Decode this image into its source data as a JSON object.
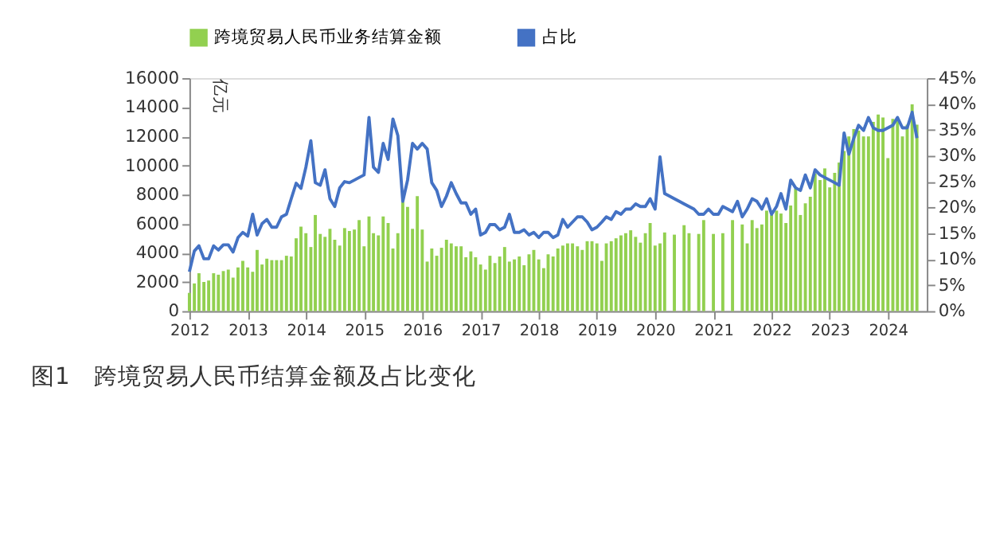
{
  "chart_data": {
    "type": "bar",
    "title": "图1　跨境贸易人民币结算金额及占比变化",
    "ylabel": "亿元",
    "x": [
      "2012-01",
      "2012-02",
      "2012-03",
      "2012-04",
      "2012-05",
      "2012-06",
      "2012-07",
      "2012-08",
      "2012-09",
      "2012-10",
      "2012-11",
      "2012-12",
      "2013-01",
      "2013-02",
      "2013-03",
      "2013-04",
      "2013-05",
      "2013-06",
      "2013-07",
      "2013-08",
      "2013-09",
      "2013-10",
      "2013-11",
      "2013-12",
      "2014-01",
      "2014-02",
      "2014-03",
      "2014-04",
      "2014-05",
      "2014-06",
      "2014-07",
      "2014-08",
      "2014-09",
      "2014-10",
      "2014-11",
      "2014-12",
      "2015-01",
      "2015-02",
      "2015-03",
      "2015-04",
      "2015-05",
      "2015-06",
      "2015-07",
      "2015-08",
      "2015-09",
      "2015-10",
      "2015-11",
      "2015-12",
      "2016-01",
      "2016-02",
      "2016-03",
      "2016-04",
      "2016-05",
      "2016-06",
      "2016-07",
      "2016-08",
      "2016-09",
      "2016-10",
      "2016-11",
      "2016-12",
      "2017-01",
      "2017-02",
      "2017-03",
      "2017-04",
      "2017-05",
      "2017-06",
      "2017-07",
      "2017-08",
      "2017-09",
      "2017-10",
      "2017-11",
      "2017-12",
      "2018-01",
      "2018-02",
      "2018-03",
      "2018-04",
      "2018-05",
      "2018-06",
      "2018-07",
      "2018-08",
      "2018-09",
      "2018-10",
      "2018-11",
      "2018-12",
      "2019-01",
      "2019-02",
      "2019-03",
      "2019-04",
      "2019-05",
      "2019-06",
      "2019-07",
      "2019-08",
      "2019-09",
      "2019-10",
      "2019-11",
      "2019-12",
      "2020-01",
      "2020-02",
      "2020-03",
      "2020-04",
      "2020-05",
      "2020-06",
      "2020-07",
      "2020-08",
      "2020-09",
      "2020-10",
      "2020-11",
      "2020-12",
      "2021-01",
      "2021-02",
      "2021-03",
      "2021-04",
      "2021-05",
      "2021-06",
      "2021-07",
      "2021-08",
      "2021-09",
      "2021-10",
      "2021-11",
      "2021-12",
      "2022-01",
      "2022-02",
      "2022-03",
      "2022-04",
      "2022-05",
      "2022-06",
      "2022-07",
      "2022-08",
      "2022-09",
      "2022-10",
      "2022-11",
      "2022-12",
      "2023-01",
      "2023-02",
      "2023-03",
      "2023-04",
      "2023-05",
      "2023-06",
      "2023-07",
      "2023-08",
      "2023-09",
      "2023-10",
      "2023-11",
      "2023-12",
      "2024-01",
      "2024-02",
      "2024-03",
      "2024-04",
      "2024-05",
      "2024-06",
      "2024-07"
    ],
    "xlim": [
      "2012-01",
      "2024-09"
    ],
    "xticks": [
      {
        "value": "2012-01",
        "label": "2012"
      },
      {
        "value": "2013-01",
        "label": "2013"
      },
      {
        "value": "2014-01",
        "label": "2014"
      },
      {
        "value": "2015-01",
        "label": "2015"
      },
      {
        "value": "2016-01",
        "label": "2016"
      },
      {
        "value": "2017-01",
        "label": "2017"
      },
      {
        "value": "2018-01",
        "label": "2018"
      },
      {
        "value": "2019-01",
        "label": "2019"
      },
      {
        "value": "2020-01",
        "label": "2020"
      },
      {
        "value": "2021-01",
        "label": "2021"
      },
      {
        "value": "2022-01",
        "label": "2022"
      },
      {
        "value": "2023-01",
        "label": "2023"
      },
      {
        "value": "2024-01",
        "label": "2024"
      }
    ],
    "ylim": [
      0,
      16000
    ],
    "yticks": [
      0,
      2000,
      4000,
      6000,
      8000,
      10000,
      12000,
      14000,
      16000
    ],
    "y2lim": [
      0,
      45
    ],
    "y2ticks": [
      {
        "value": 0,
        "label": "0%"
      },
      {
        "value": 5,
        "label": "5%"
      },
      {
        "value": 10,
        "label": "10%"
      },
      {
        "value": 15,
        "label": "15%"
      },
      {
        "value": 20,
        "label": "20%"
      },
      {
        "value": 25,
        "label": "25%"
      },
      {
        "value": 30,
        "label": "30%"
      },
      {
        "value": 35,
        "label": "35%"
      },
      {
        "value": 40,
        "label": "40%"
      },
      {
        "value": 45,
        "label": "45%"
      }
    ],
    "legend": "top",
    "grid": false,
    "series": [
      {
        "name": "跨境贸易人民币业务结算金额",
        "color": "#92d050",
        "values": [
          1250,
          1900,
          2600,
          2000,
          2100,
          2600,
          2500,
          2750,
          2850,
          2300,
          3000,
          3450,
          3000,
          2700,
          4200,
          3200,
          3600,
          3500,
          3500,
          3500,
          3800,
          3750,
          5000,
          5800,
          5350,
          4400,
          6600,
          5300,
          5100,
          5650,
          4900,
          4500,
          5700,
          5500,
          5600,
          6250,
          4450,
          6500,
          5350,
          5200,
          6500,
          6050,
          4300,
          5350,
          7500,
          7150,
          5650,
          7900,
          5600,
          3400,
          4300,
          3800,
          4350,
          4900,
          4650,
          4450,
          4450,
          3700,
          4100,
          3700,
          3200,
          2850,
          3800,
          3300,
          3750,
          4400,
          3400,
          3550,
          3750,
          3150,
          3900,
          4200,
          3550,
          2950,
          3900,
          3750,
          4300,
          4500,
          4650,
          4650,
          4450,
          4200,
          4800,
          4800,
          4650,
          3450,
          4650,
          4800,
          5000,
          5200,
          5350,
          5550,
          5100,
          4700,
          5350,
          6050,
          4500,
          4650,
          5400,
          null,
          5250,
          null,
          5900,
          5350,
          null,
          5300,
          6250,
          null,
          5300,
          null,
          5350,
          null,
          6250,
          null,
          5950,
          4650,
          6250,
          5700,
          5950,
          6900,
          6600,
          6900,
          6700,
          6050,
          7250,
          8400,
          6600,
          7400,
          7850,
          9450,
          9000,
          9800,
          8500,
          9500,
          10200,
          11000,
          12000,
          12500,
          12400,
          12000,
          12000,
          13000,
          13500,
          13300,
          10500,
          13200,
          13300,
          12000,
          12800,
          14200,
          12800
        ]
      },
      {
        "name": "占比",
        "type": "line",
        "axis": "y2",
        "color": "#4472c4",
        "values": [
          7.6,
          11.6,
          12.6,
          10.1,
          10.1,
          12.6,
          11.8,
          12.8,
          12.8,
          11.4,
          14.2,
          15.2,
          14.5,
          18.7,
          14.7,
          16.9,
          17.7,
          16.2,
          16.2,
          18.2,
          18.7,
          21.7,
          24.7,
          23.7,
          27.8,
          32.9,
          24.8,
          24.3,
          27.3,
          21.7,
          20.2,
          23.8,
          25,
          24.8,
          25.3,
          25.8,
          26.3,
          37.4,
          27.8,
          26.8,
          32.4,
          29.3,
          37.1,
          33.9,
          21.2,
          25.3,
          32.4,
          31.3,
          32.4,
          31.3,
          24.8,
          23.3,
          20.2,
          22.2,
          24.8,
          22.7,
          20.9,
          20.9,
          18.7,
          19.7,
          14.7,
          15.2,
          16.7,
          16.7,
          15.7,
          16.2,
          18.7,
          15.2,
          15.2,
          15.7,
          14.7,
          15.2,
          14.2,
          15.2,
          15.2,
          14.2,
          14.7,
          17.7,
          16.2,
          17.2,
          18.2,
          18.2,
          17.2,
          15.7,
          16.2,
          17.2,
          18.2,
          17.7,
          19.2,
          18.7,
          19.7,
          19.7,
          20.7,
          20.2,
          20.2,
          21.7,
          19.7,
          29.8,
          22.7,
          22.2,
          21.7,
          21.2,
          20.7,
          20.2,
          19.7,
          18.7,
          18.7,
          19.7,
          18.7,
          18.7,
          20.2,
          19.7,
          19.2,
          21.2,
          18.2,
          19.7,
          21.7,
          21.2,
          19.7,
          21.7,
          18.7,
          20.2,
          22.7,
          19.7,
          25.3,
          23.8,
          23.3,
          26.3,
          23.8,
          27.3,
          26.3,
          25.8,
          25.3,
          24.8,
          24.3,
          34.4,
          30.3,
          33.4,
          35.9,
          34.9,
          37.4,
          35.4,
          34.9,
          34.9,
          35.4,
          35.9,
          37.4,
          35.4,
          35.4,
          38.4,
          33.4
        ]
      }
    ]
  }
}
